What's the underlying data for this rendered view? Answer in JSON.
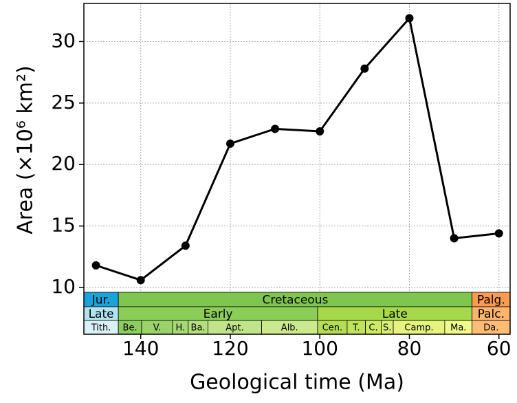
{
  "chart_data": {
    "type": "line",
    "xlabel": "Geological time (Ma)",
    "ylabel": "Area (×10⁶ km²)",
    "x": [
      150,
      140,
      130,
      120,
      110,
      100,
      90,
      80,
      70,
      60
    ],
    "series": [
      {
        "color": "#000000",
        "values": [
          11.8,
          10.6,
          13.4,
          21.7,
          22.9,
          22.7,
          27.8,
          31.9,
          14.0,
          14.4
        ]
      }
    ],
    "xlim": [
      152.7,
      57.5
    ],
    "xticks": [
      140,
      120,
      100,
      80,
      60
    ],
    "ylim": [
      6.2,
      33.1
    ],
    "yticks": [
      10,
      15,
      20,
      25,
      30
    ],
    "grid": true,
    "timescale": [
      [
        {
          "label": "Jur.",
          "start": 152.7,
          "end": 145,
          "color": "#1aa3db"
        },
        {
          "label": "Cretaceous",
          "start": 145,
          "end": 66,
          "color": "#7fc64e"
        },
        {
          "label": "Palg.",
          "start": 66,
          "end": 57.5,
          "color": "#fd9a52"
        }
      ],
      [
        {
          "label": "Late",
          "start": 152.7,
          "end": 145,
          "color": "#b3e3ee"
        },
        {
          "label": "Early",
          "start": 145,
          "end": 100.5,
          "color": "#8ccd57"
        },
        {
          "label": "Late",
          "start": 100.5,
          "end": 66,
          "color": "#a6d84a"
        },
        {
          "label": "Palc.",
          "start": 66,
          "end": 57.5,
          "color": "#fdb46c"
        }
      ],
      [
        {
          "label": "Tith.",
          "start": 152.7,
          "end": 145,
          "color": "#d9f1f7"
        },
        {
          "label": "Be.",
          "start": 145,
          "end": 139.8,
          "color": "#8ccd60"
        },
        {
          "label": "V.",
          "start": 139.8,
          "end": 132.9,
          "color": "#99d36a"
        },
        {
          "label": "H.",
          "start": 132.9,
          "end": 129.4,
          "color": "#a6d975"
        },
        {
          "label": "Ba.",
          "start": 129.4,
          "end": 125,
          "color": "#b3df7f"
        },
        {
          "label": "Apt.",
          "start": 125,
          "end": 113,
          "color": "#bfe48a"
        },
        {
          "label": "Alb.",
          "start": 113,
          "end": 100.5,
          "color": "#cce98f"
        },
        {
          "label": "Cen.",
          "start": 100.5,
          "end": 93.9,
          "color": "#b3de53"
        },
        {
          "label": "T.",
          "start": 93.9,
          "end": 89.8,
          "color": "#bfe35d"
        },
        {
          "label": "C.",
          "start": 89.8,
          "end": 86.3,
          "color": "#cce968"
        },
        {
          "label": "S.",
          "start": 86.3,
          "end": 83.6,
          "color": "#d9ef74"
        },
        {
          "label": "Camp.",
          "start": 83.6,
          "end": 72.1,
          "color": "#e6f47f"
        },
        {
          "label": "Ma.",
          "start": 72.1,
          "end": 66,
          "color": "#f2fa8c"
        },
        {
          "label": "Da.",
          "start": 66,
          "end": 57.5,
          "color": "#fdbc75"
        }
      ]
    ]
  }
}
